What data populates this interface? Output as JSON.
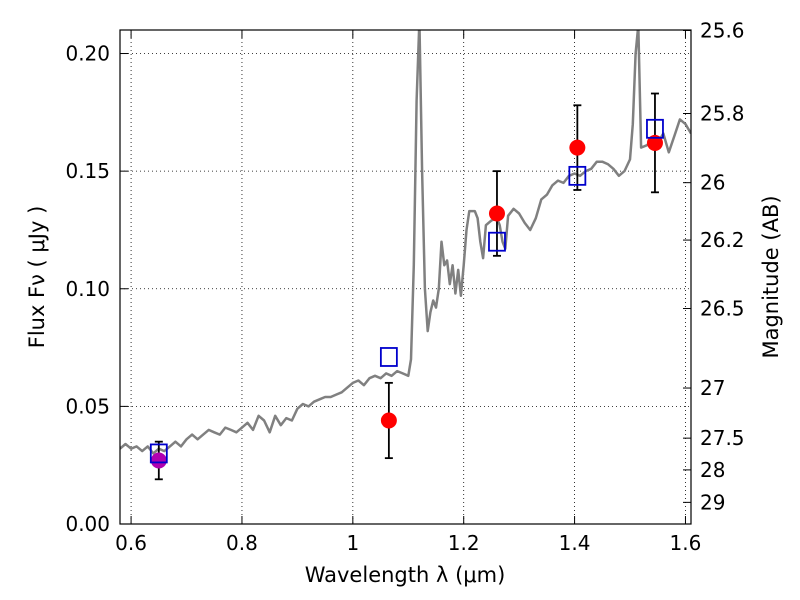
{
  "chart_data": {
    "type": "scatter",
    "xlabel": "Wavelength  λ (μm)",
    "ylabel": "Flux  Fν  ( μJy )",
    "y2label": "Magnitude (AB)",
    "xlim": [
      0.58,
      1.61
    ],
    "ylim": [
      0.0,
      0.21
    ],
    "grid": true,
    "x_ticks": [
      0.6,
      0.8,
      1.0,
      1.2,
      1.4,
      1.6
    ],
    "x_tick_labels": [
      "0.6",
      "0.8",
      "1",
      "1.2",
      "1.4",
      "1.6"
    ],
    "y_ticks": [
      0.0,
      0.05,
      0.1,
      0.15,
      0.2
    ],
    "y_tick_labels": [
      "0.00",
      "0.05",
      "0.10",
      "0.15",
      "0.20"
    ],
    "y2_ticks": [
      {
        "label": "25.6",
        "flux": 0.2098
      },
      {
        "label": "25.8",
        "flux": 0.1745
      },
      {
        "label": "26",
        "flux": 0.1451
      },
      {
        "label": "26.2",
        "flux": 0.1207
      },
      {
        "label": "26.5",
        "flux": 0.0916
      },
      {
        "label": "27",
        "flux": 0.0578
      },
      {
        "label": "27.5",
        "flux": 0.0365
      },
      {
        "label": "28",
        "flux": 0.023
      },
      {
        "label": "29",
        "flux": 0.0092
      }
    ],
    "model_spectrum": {
      "color": "#808080",
      "points": [
        [
          0.58,
          0.032
        ],
        [
          0.59,
          0.034
        ],
        [
          0.6,
          0.032
        ],
        [
          0.61,
          0.033
        ],
        [
          0.62,
          0.031
        ],
        [
          0.63,
          0.033
        ],
        [
          0.64,
          0.03
        ],
        [
          0.65,
          0.032
        ],
        [
          0.66,
          0.031
        ],
        [
          0.67,
          0.033
        ],
        [
          0.68,
          0.035
        ],
        [
          0.69,
          0.033
        ],
        [
          0.7,
          0.036
        ],
        [
          0.71,
          0.038
        ],
        [
          0.72,
          0.036
        ],
        [
          0.73,
          0.038
        ],
        [
          0.74,
          0.04
        ],
        [
          0.75,
          0.039
        ],
        [
          0.76,
          0.038
        ],
        [
          0.77,
          0.041
        ],
        [
          0.78,
          0.04
        ],
        [
          0.79,
          0.039
        ],
        [
          0.8,
          0.041
        ],
        [
          0.81,
          0.043
        ],
        [
          0.82,
          0.04
        ],
        [
          0.83,
          0.046
        ],
        [
          0.84,
          0.044
        ],
        [
          0.85,
          0.039
        ],
        [
          0.86,
          0.046
        ],
        [
          0.87,
          0.042
        ],
        [
          0.88,
          0.045
        ],
        [
          0.89,
          0.044
        ],
        [
          0.9,
          0.049
        ],
        [
          0.91,
          0.051
        ],
        [
          0.92,
          0.05
        ],
        [
          0.93,
          0.052
        ],
        [
          0.94,
          0.053
        ],
        [
          0.95,
          0.054
        ],
        [
          0.96,
          0.054
        ],
        [
          0.97,
          0.055
        ],
        [
          0.98,
          0.056
        ],
        [
          0.99,
          0.058
        ],
        [
          1.0,
          0.06
        ],
        [
          1.01,
          0.061
        ],
        [
          1.02,
          0.059
        ],
        [
          1.03,
          0.062
        ],
        [
          1.04,
          0.063
        ],
        [
          1.05,
          0.062
        ],
        [
          1.06,
          0.064
        ],
        [
          1.07,
          0.063
        ],
        [
          1.08,
          0.065
        ],
        [
          1.09,
          0.064
        ],
        [
          1.1,
          0.063
        ],
        [
          1.105,
          0.07
        ],
        [
          1.11,
          0.11
        ],
        [
          1.115,
          0.18
        ],
        [
          1.12,
          0.214
        ],
        [
          1.125,
          0.15
        ],
        [
          1.13,
          0.1
        ],
        [
          1.135,
          0.082
        ],
        [
          1.14,
          0.09
        ],
        [
          1.145,
          0.095
        ],
        [
          1.15,
          0.092
        ],
        [
          1.155,
          0.1
        ],
        [
          1.16,
          0.12
        ],
        [
          1.165,
          0.11
        ],
        [
          1.17,
          0.112
        ],
        [
          1.175,
          0.102
        ],
        [
          1.18,
          0.11
        ],
        [
          1.185,
          0.098
        ],
        [
          1.19,
          0.108
        ],
        [
          1.195,
          0.097
        ],
        [
          1.2,
          0.11
        ],
        [
          1.205,
          0.125
        ],
        [
          1.21,
          0.133
        ],
        [
          1.22,
          0.133
        ],
        [
          1.225,
          0.13
        ],
        [
          1.23,
          0.12
        ],
        [
          1.235,
          0.113
        ],
        [
          1.24,
          0.127
        ],
        [
          1.25,
          0.129
        ],
        [
          1.26,
          0.13
        ],
        [
          1.265,
          0.127
        ],
        [
          1.27,
          0.12
        ],
        [
          1.275,
          0.117
        ],
        [
          1.28,
          0.131
        ],
        [
          1.29,
          0.134
        ],
        [
          1.3,
          0.132
        ],
        [
          1.31,
          0.128
        ],
        [
          1.32,
          0.125
        ],
        [
          1.33,
          0.13
        ],
        [
          1.34,
          0.138
        ],
        [
          1.35,
          0.14
        ],
        [
          1.36,
          0.144
        ],
        [
          1.37,
          0.146
        ],
        [
          1.38,
          0.145
        ],
        [
          1.39,
          0.148
        ],
        [
          1.4,
          0.149
        ],
        [
          1.41,
          0.148
        ],
        [
          1.42,
          0.15
        ],
        [
          1.43,
          0.151
        ],
        [
          1.44,
          0.154
        ],
        [
          1.45,
          0.154
        ],
        [
          1.46,
          0.153
        ],
        [
          1.47,
          0.151
        ],
        [
          1.48,
          0.148
        ],
        [
          1.49,
          0.15
        ],
        [
          1.5,
          0.155
        ],
        [
          1.505,
          0.17
        ],
        [
          1.51,
          0.2
        ],
        [
          1.515,
          0.212
        ],
        [
          1.52,
          0.16
        ],
        [
          1.53,
          0.161
        ],
        [
          1.54,
          0.163
        ],
        [
          1.55,
          0.162
        ],
        [
          1.56,
          0.166
        ],
        [
          1.57,
          0.158
        ],
        [
          1.58,
          0.165
        ],
        [
          1.59,
          0.172
        ],
        [
          1.6,
          0.17
        ],
        [
          1.61,
          0.166
        ]
      ]
    },
    "series": [
      {
        "marker": "circle",
        "color": "#ff0000",
        "points": [
          {
            "x": 0.65,
            "y": 0.027,
            "err": 0.008
          },
          {
            "x": 1.065,
            "y": 0.044,
            "err": 0.016
          },
          {
            "x": 1.26,
            "y": 0.132,
            "err": 0.018
          },
          {
            "x": 1.405,
            "y": 0.16,
            "err": 0.018
          },
          {
            "x": 1.545,
            "y": 0.162,
            "err": 0.021
          }
        ]
      },
      {
        "marker": "open-square",
        "color": "#0000cc",
        "points": [
          {
            "x": 0.65,
            "y": 0.03
          },
          {
            "x": 1.065,
            "y": 0.071
          },
          {
            "x": 1.26,
            "y": 0.12
          },
          {
            "x": 1.405,
            "y": 0.148
          },
          {
            "x": 1.545,
            "y": 0.168
          }
        ]
      }
    ],
    "overlap_color": "#b000b0"
  }
}
